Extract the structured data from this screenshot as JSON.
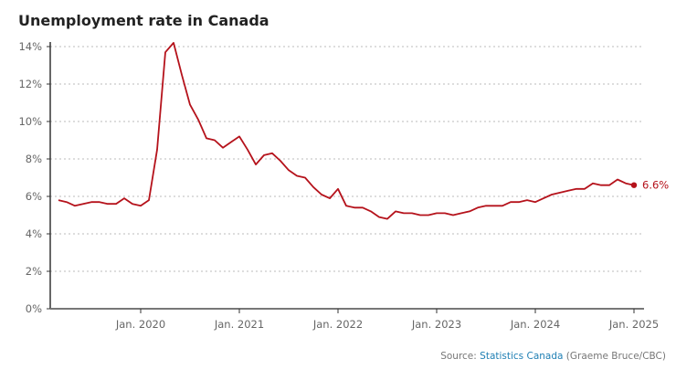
{
  "chart_data": {
    "type": "line",
    "title": "Unemployment rate in Canada",
    "xlabel": "",
    "ylabel": "",
    "x_start": "2019-03",
    "x_end": "2025-01",
    "x_tick_labels": [
      "Jan. 2020",
      "Jan. 2021",
      "Jan. 2022",
      "Jan. 2023",
      "Jan. 2024",
      "Jan. 2025"
    ],
    "x_tick_months": [
      "2020-01",
      "2021-01",
      "2022-01",
      "2023-01",
      "2024-01",
      "2025-01"
    ],
    "y_ticks": [
      0,
      2,
      4,
      6,
      8,
      10,
      12,
      14
    ],
    "y_tick_labels": [
      "0%",
      "2%",
      "4%",
      "6%",
      "8%",
      "10%",
      "12%",
      "14%"
    ],
    "ylim": [
      0,
      14
    ],
    "grid": "horizontal dotted",
    "line_color": "#b5121b",
    "series": [
      {
        "x": [
          "2019-03",
          "2019-04",
          "2019-05",
          "2019-06",
          "2019-07",
          "2019-08",
          "2019-09",
          "2019-10",
          "2019-11",
          "2019-12",
          "2020-01",
          "2020-02",
          "2020-03",
          "2020-04",
          "2020-05",
          "2020-06",
          "2020-07",
          "2020-08",
          "2020-09",
          "2020-10",
          "2020-11",
          "2020-12",
          "2021-01",
          "2021-02",
          "2021-03",
          "2021-04",
          "2021-05",
          "2021-06",
          "2021-07",
          "2021-08",
          "2021-09",
          "2021-10",
          "2021-11",
          "2021-12",
          "2022-01",
          "2022-02",
          "2022-03",
          "2022-04",
          "2022-05",
          "2022-06",
          "2022-07",
          "2022-08",
          "2022-09",
          "2022-10",
          "2022-11",
          "2022-12",
          "2023-01",
          "2023-02",
          "2023-03",
          "2023-04",
          "2023-05",
          "2023-06",
          "2023-07",
          "2023-08",
          "2023-09",
          "2023-10",
          "2023-11",
          "2023-12",
          "2024-01",
          "2024-02",
          "2024-03",
          "2024-04",
          "2024-05",
          "2024-06",
          "2024-07",
          "2024-08",
          "2024-09",
          "2024-10",
          "2024-11",
          "2024-12",
          "2025-01"
        ],
        "values": [
          5.8,
          5.7,
          5.5,
          5.6,
          5.7,
          5.7,
          5.6,
          5.6,
          5.9,
          5.6,
          5.5,
          5.8,
          8.5,
          13.7,
          14.2,
          12.5,
          10.9,
          10.1,
          9.1,
          9.0,
          8.6,
          8.9,
          9.2,
          8.5,
          7.7,
          8.2,
          8.3,
          7.9,
          7.4,
          7.1,
          7.0,
          6.5,
          6.1,
          5.9,
          6.4,
          5.5,
          5.4,
          5.4,
          5.2,
          4.9,
          4.8,
          5.2,
          5.1,
          5.1,
          5.0,
          5.0,
          5.1,
          5.1,
          5.0,
          5.1,
          5.2,
          5.4,
          5.5,
          5.5,
          5.5,
          5.7,
          5.7,
          5.8,
          5.7,
          5.9,
          6.1,
          6.2,
          6.3,
          6.4,
          6.4,
          6.7,
          6.6,
          6.6,
          6.9,
          6.7,
          6.6
        ]
      }
    ],
    "end_label": "6.6%"
  },
  "source": {
    "prefix": "Source: ",
    "link": "Statistics Canada",
    "suffix": " (Graeme Bruce/CBC)"
  }
}
